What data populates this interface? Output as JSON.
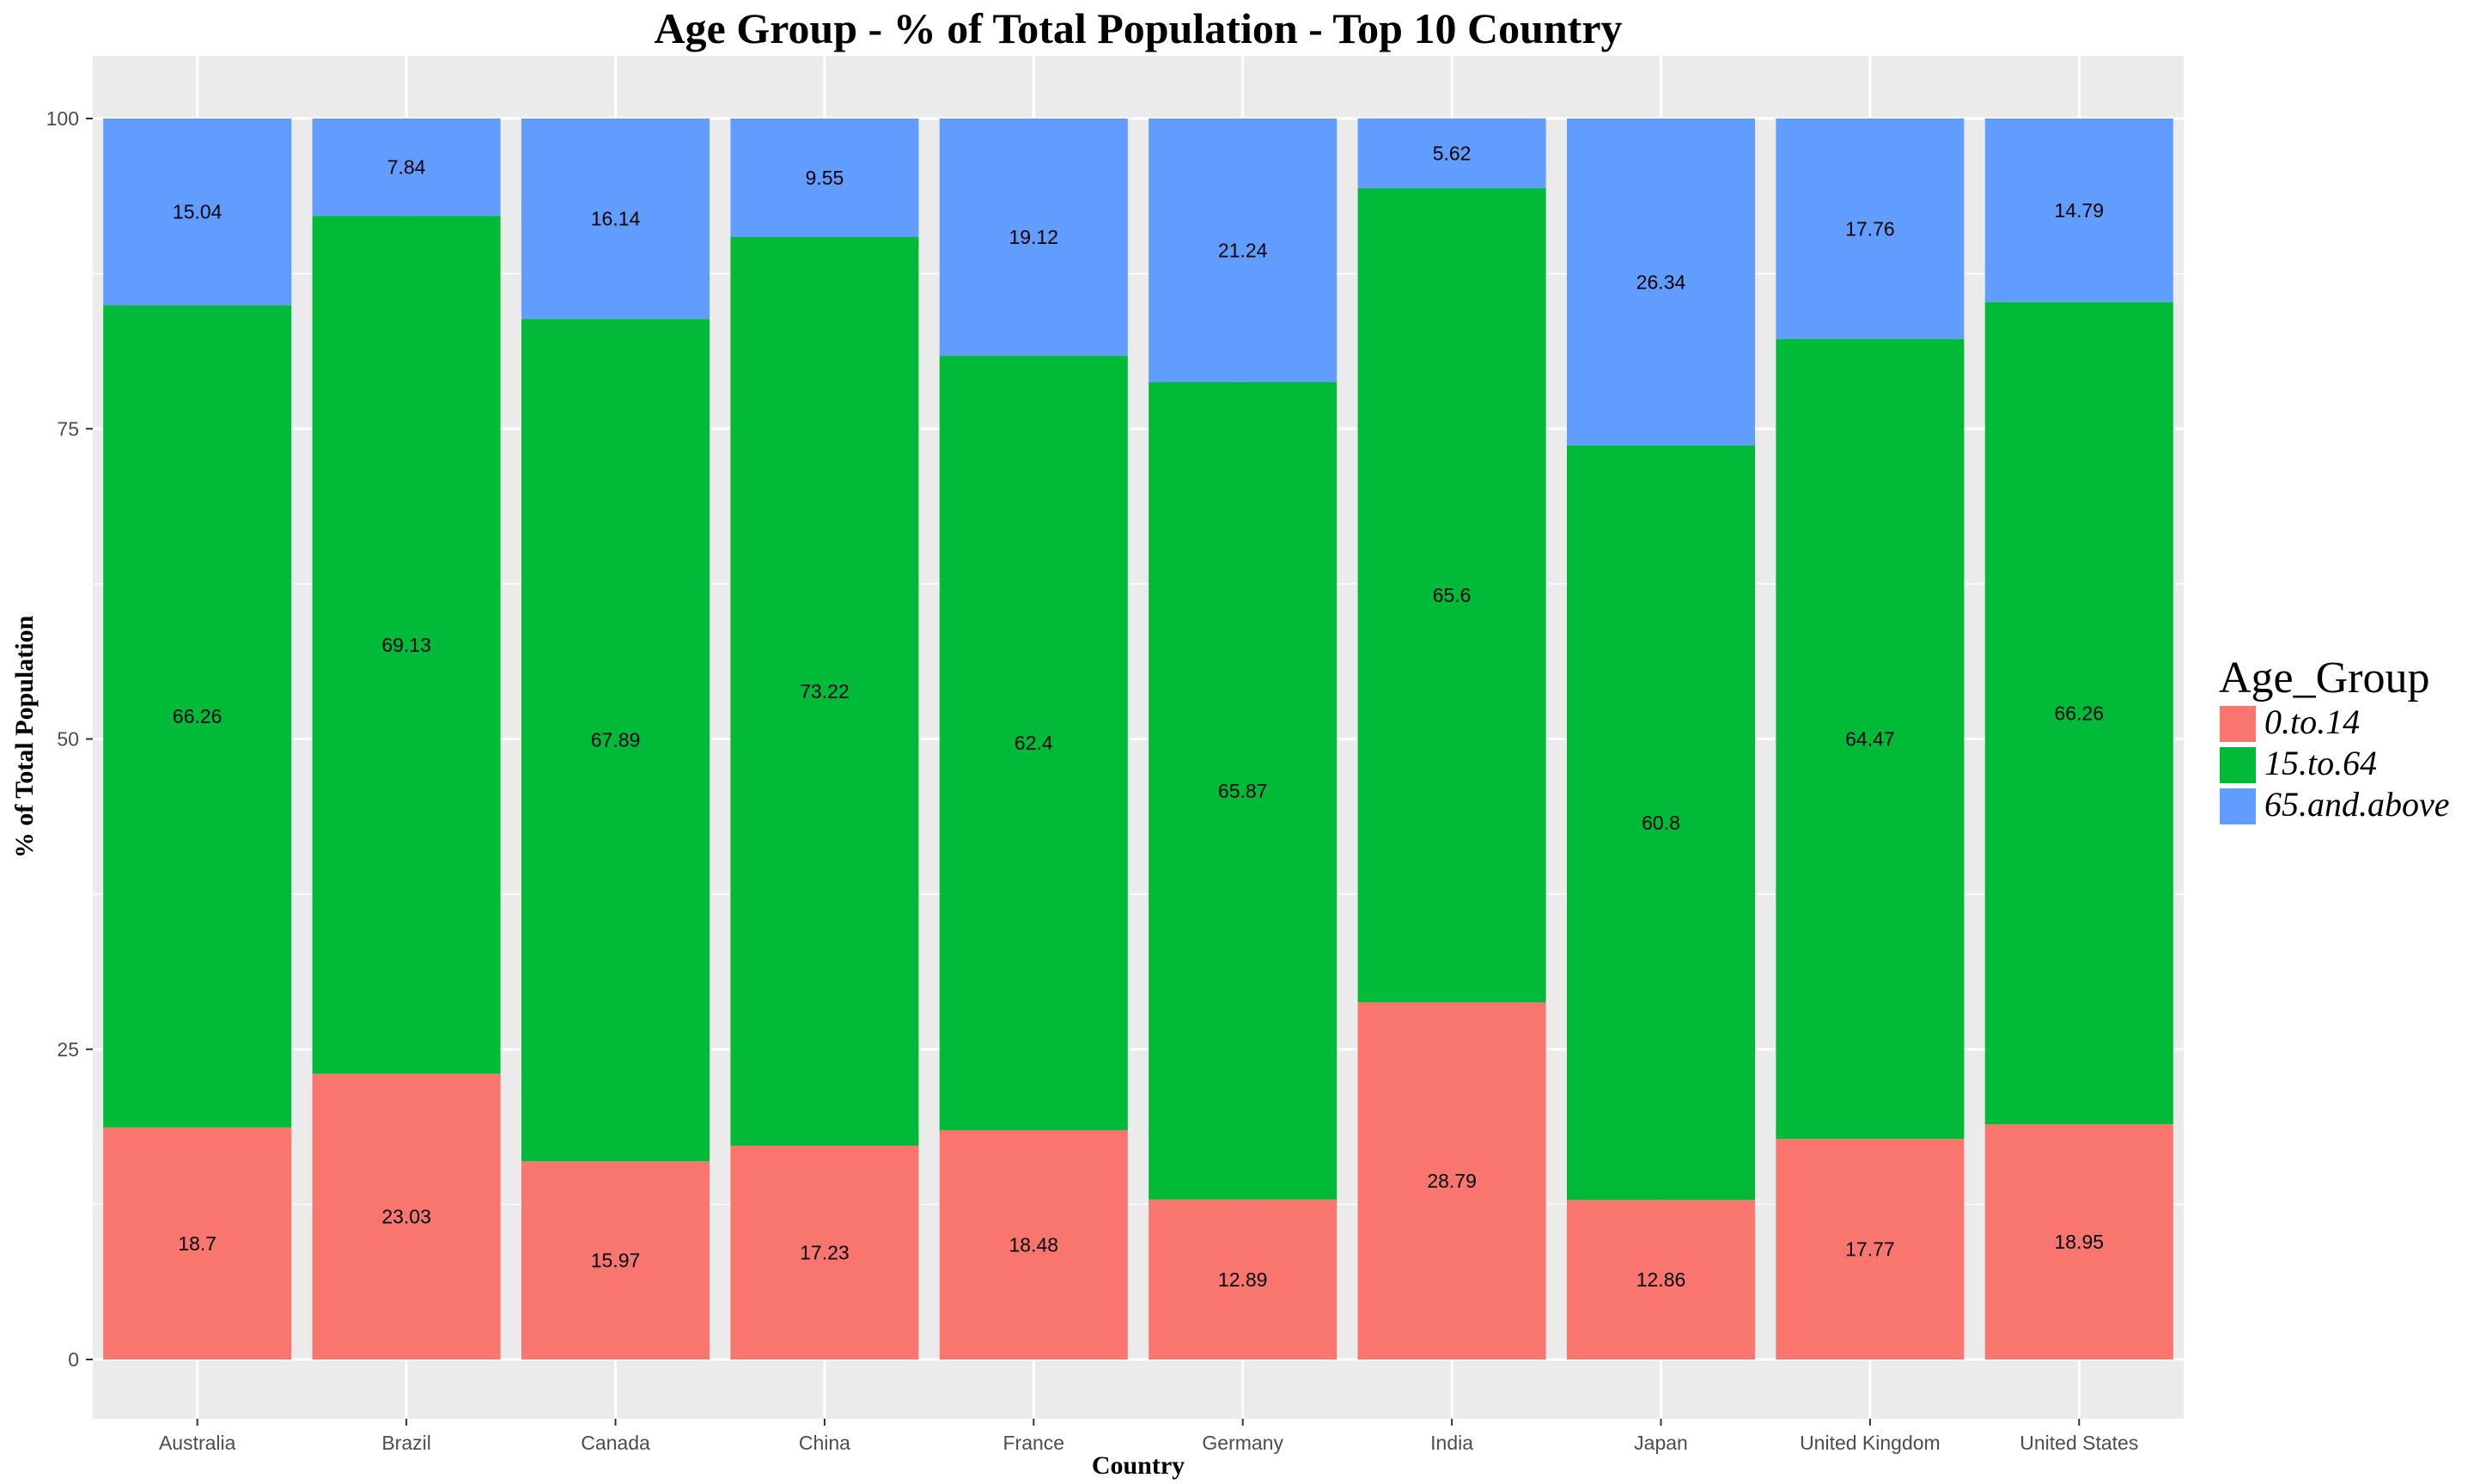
{
  "chart_data": {
    "type": "bar",
    "stacked": true,
    "title": "Age Group - % of Total Population - Top 10 Country",
    "xlabel": "Country",
    "ylabel": "% of Total Population",
    "ylim": [
      0,
      100
    ],
    "yticks": [
      0,
      25,
      50,
      75,
      100
    ],
    "grid": true,
    "legend_position": "right",
    "legend_title": "Age_Group",
    "categories": [
      "Australia",
      "Brazil",
      "Canada",
      "China",
      "France",
      "Germany",
      "India",
      "Japan",
      "United Kingdom",
      "United States"
    ],
    "series": [
      {
        "name": "0.to.14",
        "color": "#F8766D",
        "values": [
          18.7,
          23.03,
          15.97,
          17.23,
          18.48,
          12.89,
          28.79,
          12.86,
          17.77,
          18.95
        ]
      },
      {
        "name": "15.to.64",
        "color": "#00BA38",
        "values": [
          66.26,
          69.13,
          67.89,
          73.22,
          62.4,
          65.87,
          65.6,
          60.8,
          64.47,
          66.26
        ]
      },
      {
        "name": "65.and.above",
        "color": "#619CFF",
        "values": [
          15.04,
          7.84,
          16.14,
          9.55,
          19.12,
          21.24,
          5.62,
          26.34,
          17.76,
          14.79
        ]
      }
    ]
  }
}
